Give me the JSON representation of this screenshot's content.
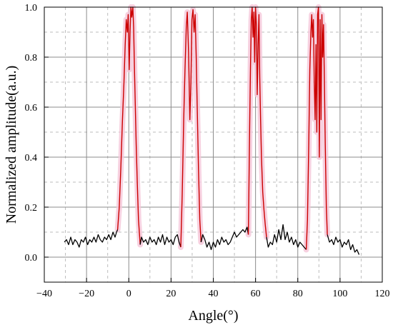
{
  "chart_data": {
    "type": "line",
    "xlabel": "Angle(°)",
    "ylabel": "Normalized amplitude(a.u.)",
    "xlim": [
      -40,
      120
    ],
    "ylim": [
      -0.1,
      1.0
    ],
    "xticks": [
      -40,
      -20,
      0,
      20,
      40,
      60,
      80,
      100,
      120
    ],
    "yticks": [
      0.0,
      0.2,
      0.4,
      0.6,
      0.8,
      1.0
    ],
    "xtick_labels": [
      "−40",
      "−20",
      "0",
      "20",
      "40",
      "60",
      "80",
      "100",
      "120"
    ],
    "ytick_labels": [
      "0.0",
      "0.2",
      "0.4",
      "0.6",
      "0.8",
      "1.0"
    ],
    "grid": true,
    "legend": "none",
    "colors": {
      "baseline": "#000000",
      "peak": "#cc0000",
      "peak_halo": "#f5c6d8",
      "major_grid": "#8c8c8c",
      "minor_grid": "#bdbdbd"
    },
    "series": [
      {
        "role": "baseline",
        "points": [
          [
            -30.5,
            0.06
          ],
          [
            -29.5,
            0.07
          ],
          [
            -28.5,
            0.05
          ],
          [
            -27.5,
            0.08
          ],
          [
            -26.5,
            0.05
          ],
          [
            -25.5,
            0.07
          ],
          [
            -24.5,
            0.06
          ],
          [
            -23.5,
            0.04
          ],
          [
            -22.5,
            0.07
          ],
          [
            -21.5,
            0.06
          ],
          [
            -20.5,
            0.08
          ],
          [
            -19.5,
            0.05
          ],
          [
            -18.5,
            0.07
          ],
          [
            -17.5,
            0.06
          ],
          [
            -16.5,
            0.08
          ],
          [
            -15.5,
            0.06
          ],
          [
            -14.5,
            0.09
          ],
          [
            -13.5,
            0.07
          ],
          [
            -12.5,
            0.06
          ],
          [
            -11.5,
            0.08
          ],
          [
            -10.5,
            0.07
          ],
          [
            -9.5,
            0.09
          ],
          [
            -8.5,
            0.07
          ],
          [
            -7.5,
            0.1
          ],
          [
            -6.5,
            0.08
          ],
          [
            -5.8,
            0.1
          ],
          [
            -5.3,
            0.11
          ]
        ]
      },
      {
        "role": "peak",
        "points": [
          [
            -5.3,
            0.11
          ],
          [
            -4.5,
            0.2
          ],
          [
            -3.8,
            0.35
          ],
          [
            -3.0,
            0.55
          ],
          [
            -2.3,
            0.7
          ],
          [
            -1.7,
            0.85
          ],
          [
            -1.2,
            0.95
          ],
          [
            -0.7,
            0.9
          ],
          [
            -0.3,
            0.97
          ],
          [
            0.2,
            0.75
          ],
          [
            0.6,
            0.9
          ],
          [
            1.0,
            1.0
          ],
          [
            1.4,
            0.96
          ],
          [
            1.9,
            1.0
          ],
          [
            2.3,
            0.92
          ],
          [
            2.7,
            0.75
          ],
          [
            3.1,
            0.6
          ],
          [
            3.5,
            0.45
          ],
          [
            4.0,
            0.3
          ],
          [
            4.6,
            0.15
          ],
          [
            5.4,
            0.05
          ]
        ]
      },
      {
        "role": "baseline",
        "points": [
          [
            5.4,
            0.05
          ],
          [
            6.0,
            0.08
          ],
          [
            7,
            0.06
          ],
          [
            8,
            0.07
          ],
          [
            9,
            0.05
          ],
          [
            10,
            0.08
          ],
          [
            11,
            0.06
          ],
          [
            12,
            0.07
          ],
          [
            13,
            0.05
          ],
          [
            14,
            0.08
          ],
          [
            15,
            0.06
          ],
          [
            16,
            0.09
          ],
          [
            17,
            0.05
          ],
          [
            18,
            0.08
          ],
          [
            19,
            0.06
          ],
          [
            20,
            0.07
          ],
          [
            21,
            0.05
          ],
          [
            22,
            0.08
          ],
          [
            23,
            0.09
          ],
          [
            23.8,
            0.06
          ],
          [
            24.6,
            0.04
          ]
        ]
      },
      {
        "role": "peak",
        "points": [
          [
            24.6,
            0.04
          ],
          [
            25.3,
            0.25
          ],
          [
            26.0,
            0.55
          ],
          [
            26.6,
            0.75
          ],
          [
            27.2,
            0.92
          ],
          [
            27.7,
            0.98
          ],
          [
            28.3,
            0.82
          ],
          [
            28.9,
            0.55
          ],
          [
            29.4,
            0.7
          ],
          [
            29.9,
            0.95
          ],
          [
            30.4,
            0.99
          ],
          [
            30.9,
            0.9
          ],
          [
            31.4,
            0.97
          ],
          [
            31.9,
            0.8
          ],
          [
            32.4,
            0.6
          ],
          [
            33.0,
            0.35
          ],
          [
            33.6,
            0.15
          ],
          [
            34.2,
            0.06
          ]
        ]
      },
      {
        "role": "baseline",
        "points": [
          [
            34.2,
            0.06
          ],
          [
            35,
            0.09
          ],
          [
            36,
            0.07
          ],
          [
            37,
            0.04
          ],
          [
            38,
            0.06
          ],
          [
            39,
            0.03
          ],
          [
            40,
            0.06
          ],
          [
            41,
            0.04
          ],
          [
            42,
            0.07
          ],
          [
            43,
            0.05
          ],
          [
            44,
            0.08
          ],
          [
            45,
            0.06
          ],
          [
            46,
            0.07
          ],
          [
            47,
            0.05
          ],
          [
            48,
            0.06
          ],
          [
            49,
            0.08
          ],
          [
            50,
            0.1
          ],
          [
            51,
            0.08
          ],
          [
            52,
            0.09
          ],
          [
            53,
            0.1
          ],
          [
            54,
            0.11
          ],
          [
            55,
            0.1
          ],
          [
            56,
            0.12
          ],
          [
            56.6,
            0.09
          ]
        ]
      },
      {
        "role": "peak",
        "points": [
          [
            56.6,
            0.09
          ],
          [
            57.2,
            0.5
          ],
          [
            57.6,
            0.75
          ],
          [
            58.0,
            0.95
          ],
          [
            58.4,
            1.0
          ],
          [
            58.8,
            0.88
          ],
          [
            59.2,
            0.98
          ],
          [
            59.6,
            0.78
          ],
          [
            60.0,
            1.0
          ],
          [
            60.4,
            0.93
          ],
          [
            60.8,
            0.65
          ],
          [
            61.2,
            0.85
          ],
          [
            61.6,
            0.97
          ],
          [
            62.0,
            0.72
          ],
          [
            62.4,
            0.55
          ],
          [
            62.8,
            0.4
          ],
          [
            63.4,
            0.26
          ],
          [
            64.0,
            0.19
          ],
          [
            64.6,
            0.13
          ],
          [
            65.2,
            0.08
          ]
        ]
      },
      {
        "role": "baseline",
        "points": [
          [
            65.2,
            0.08
          ],
          [
            66,
            0.04
          ],
          [
            67,
            0.06
          ],
          [
            68,
            0.05
          ],
          [
            69,
            0.09
          ],
          [
            70,
            0.06
          ],
          [
            71,
            0.11
          ],
          [
            72,
            0.07
          ],
          [
            73,
            0.13
          ],
          [
            74,
            0.07
          ],
          [
            75,
            0.1
          ],
          [
            76,
            0.06
          ],
          [
            77,
            0.08
          ],
          [
            78,
            0.05
          ],
          [
            79,
            0.07
          ],
          [
            80,
            0.04
          ],
          [
            81,
            0.06
          ],
          [
            82,
            0.05
          ],
          [
            83,
            0.04
          ],
          [
            84,
            0.03
          ]
        ]
      },
      {
        "role": "peak",
        "points": [
          [
            84,
            0.03
          ],
          [
            84.6,
            0.15
          ],
          [
            85.2,
            0.45
          ],
          [
            85.7,
            0.75
          ],
          [
            86.2,
            0.9
          ],
          [
            86.6,
            0.97
          ],
          [
            87.0,
            0.88
          ],
          [
            87.4,
            0.95
          ],
          [
            87.8,
            0.7
          ],
          [
            88.2,
            0.55
          ],
          [
            88.6,
            0.85
          ],
          [
            89.0,
            0.5
          ],
          [
            89.4,
            0.97
          ],
          [
            89.8,
            1.0
          ],
          [
            90.2,
            0.4
          ],
          [
            90.6,
            0.95
          ],
          [
            91.0,
            0.55
          ],
          [
            91.4,
            0.97
          ],
          [
            91.8,
            0.8
          ],
          [
            92.2,
            0.93
          ],
          [
            92.6,
            0.7
          ],
          [
            93.0,
            0.45
          ],
          [
            93.5,
            0.2
          ],
          [
            94.0,
            0.09
          ]
        ]
      },
      {
        "role": "baseline",
        "points": [
          [
            94.0,
            0.09
          ],
          [
            95,
            0.06
          ],
          [
            96,
            0.07
          ],
          [
            97,
            0.05
          ],
          [
            98,
            0.08
          ],
          [
            99,
            0.06
          ],
          [
            100,
            0.07
          ],
          [
            101,
            0.04
          ],
          [
            102,
            0.06
          ],
          [
            103,
            0.05
          ],
          [
            104,
            0.07
          ],
          [
            105,
            0.03
          ],
          [
            106,
            0.05
          ],
          [
            107,
            0.02
          ],
          [
            108,
            0.03
          ],
          [
            109,
            0.01
          ]
        ]
      }
    ]
  }
}
